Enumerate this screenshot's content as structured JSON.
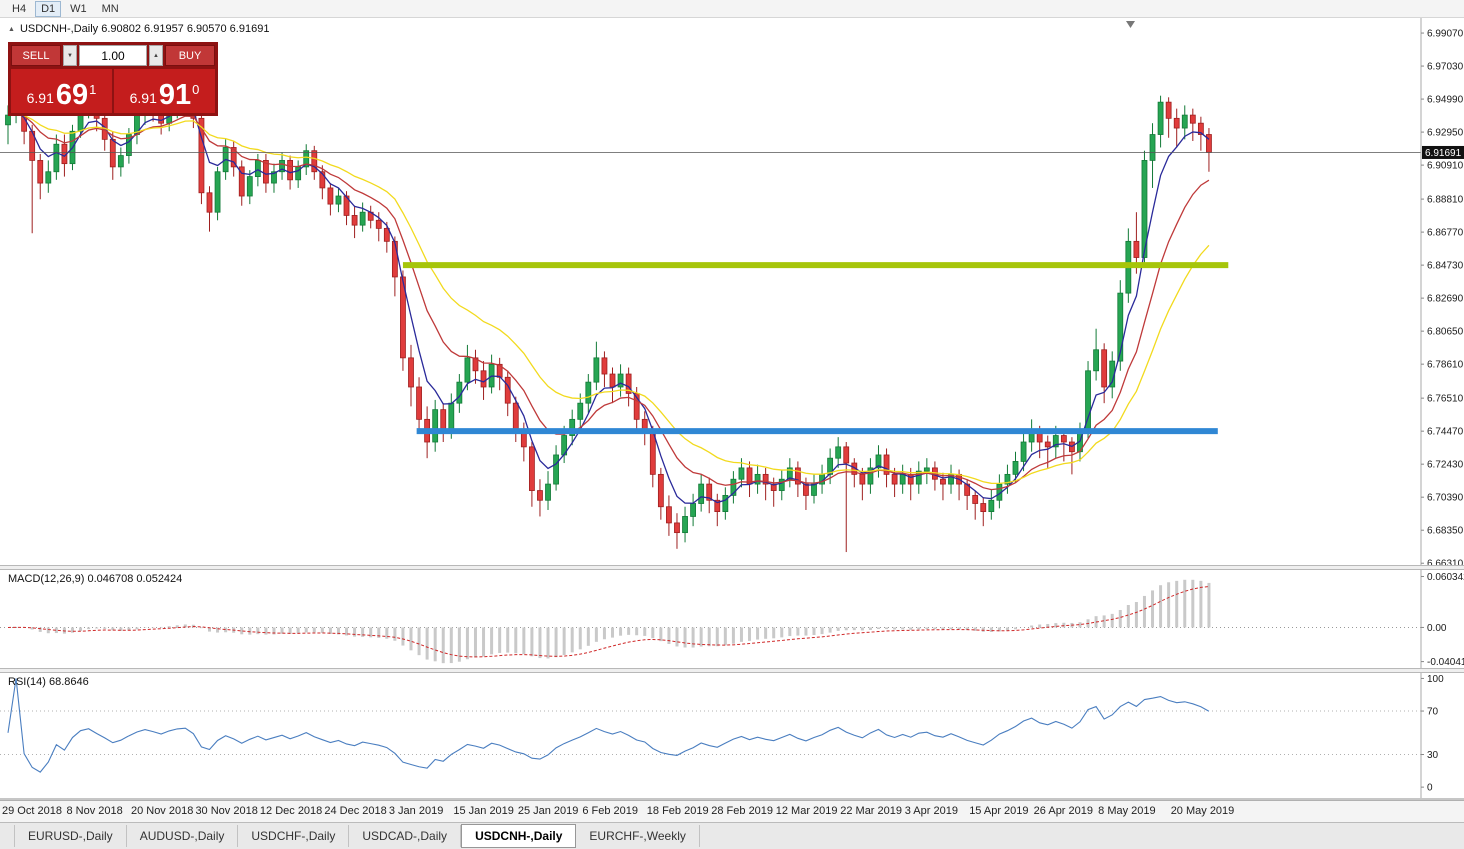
{
  "window": {
    "timeframes": [
      "H4",
      "D1",
      "W1",
      "MN"
    ],
    "active_timeframe": "D1"
  },
  "chart_header": {
    "collapse_icon": "▲",
    "title": "USDCNH-,Daily 6.90802 6.91957 6.90570 6.91691"
  },
  "trade_panel": {
    "sell_label": "SELL",
    "buy_label": "BUY",
    "volume": "1.00",
    "volume_down_icon": "▼",
    "volume_up_icon": "▲",
    "sell_price": {
      "prefix": "6.91",
      "big": "69",
      "sup": "1"
    },
    "buy_price": {
      "prefix": "6.91",
      "big": "91",
      "sup": "0"
    }
  },
  "price_scale": {
    "labels": [
      "6.99070",
      "6.97030",
      "6.94990",
      "6.92950",
      "6.90910",
      "6.88810",
      "6.86770",
      "6.84730",
      "6.82690",
      "6.80650",
      "6.78610",
      "6.76510",
      "6.74470",
      "6.72430",
      "6.70390",
      "6.68350",
      "6.66310"
    ],
    "current": "6.91691"
  },
  "colors": {
    "bull": "#26a553",
    "bull_border": "#127a37",
    "bear": "#e03c3c",
    "bear_border": "#9e1f1f",
    "ma_fast": "#2a2a9a",
    "ma_medium": "#bf3a3a",
    "ma_slow": "#f2da1e",
    "hline_green": "#a6c50a",
    "hline_blue": "#2f87d4",
    "macd_hist": "#c9c9c9",
    "macd_signal": "#cf2929",
    "rsi_line": "#4a7ec0",
    "current_price_line": "#555555",
    "badge_bg": "#111111"
  },
  "chart_data": {
    "type": "candlestick",
    "symbol": "USDCNH",
    "timeframe": "Daily",
    "y_range": [
      6.662,
      7.0
    ],
    "current_price": 6.91691,
    "candles": [
      [
        6.934,
        6.946,
        6.922,
        6.94
      ],
      [
        6.94,
        6.953,
        6.935,
        6.948
      ],
      [
        6.948,
        6.952,
        6.922,
        6.93
      ],
      [
        6.93,
        6.934,
        6.867,
        6.912
      ],
      [
        6.912,
        6.916,
        6.888,
        6.898
      ],
      [
        6.898,
        6.912,
        6.892,
        6.905
      ],
      [
        6.905,
        6.928,
        6.9,
        6.922
      ],
      [
        6.922,
        6.928,
        6.902,
        6.91
      ],
      [
        6.91,
        6.934,
        6.906,
        6.93
      ],
      [
        6.93,
        6.95,
        6.926,
        6.945
      ],
      [
        6.945,
        6.955,
        6.938,
        6.95
      ],
      [
        6.95,
        6.953,
        6.93,
        6.938
      ],
      [
        6.938,
        6.942,
        6.918,
        6.925
      ],
      [
        6.925,
        6.93,
        6.9,
        6.908
      ],
      [
        6.908,
        6.92,
        6.902,
        6.915
      ],
      [
        6.915,
        6.932,
        6.91,
        6.928
      ],
      [
        6.928,
        6.945,
        6.922,
        6.94
      ],
      [
        6.94,
        6.952,
        6.934,
        6.948
      ],
      [
        6.948,
        6.953,
        6.936,
        6.942
      ],
      [
        6.942,
        6.947,
        6.928,
        6.935
      ],
      [
        6.935,
        6.948,
        6.93,
        6.944
      ],
      [
        6.944,
        6.954,
        6.938,
        6.95
      ],
      [
        6.95,
        6.956,
        6.944,
        6.952
      ],
      [
        6.952,
        6.955,
        6.932,
        6.938
      ],
      [
        6.938,
        6.942,
        6.885,
        6.892
      ],
      [
        6.892,
        6.896,
        6.868,
        6.88
      ],
      [
        6.88,
        6.908,
        6.875,
        6.905
      ],
      [
        6.905,
        6.925,
        6.9,
        6.92
      ],
      [
        6.92,
        6.924,
        6.902,
        6.908
      ],
      [
        6.908,
        6.912,
        6.884,
        6.89
      ],
      [
        6.89,
        6.906,
        6.885,
        6.902
      ],
      [
        6.902,
        6.916,
        6.896,
        6.912
      ],
      [
        6.912,
        6.916,
        6.892,
        6.898
      ],
      [
        6.898,
        6.91,
        6.892,
        6.905
      ],
      [
        6.905,
        6.917,
        6.9,
        6.912
      ],
      [
        6.912,
        6.915,
        6.894,
        6.9
      ],
      [
        6.9,
        6.912,
        6.895,
        6.908
      ],
      [
        6.908,
        6.922,
        6.903,
        6.918
      ],
      [
        6.918,
        6.921,
        6.9,
        6.905
      ],
      [
        6.905,
        6.909,
        6.888,
        6.895
      ],
      [
        6.895,
        6.898,
        6.878,
        6.885
      ],
      [
        6.885,
        6.895,
        6.88,
        6.89
      ],
      [
        6.89,
        6.893,
        6.872,
        6.878
      ],
      [
        6.878,
        6.884,
        6.864,
        6.872
      ],
      [
        6.872,
        6.886,
        6.868,
        6.88
      ],
      [
        6.88,
        6.884,
        6.87,
        6.875
      ],
      [
        6.875,
        6.88,
        6.862,
        6.87
      ],
      [
        6.87,
        6.874,
        6.855,
        6.862
      ],
      [
        6.862,
        6.865,
        6.828,
        6.84
      ],
      [
        6.84,
        6.844,
        6.782,
        6.79
      ],
      [
        6.79,
        6.798,
        6.76,
        6.772
      ],
      [
        6.772,
        6.778,
        6.744,
        6.752
      ],
      [
        6.752,
        6.76,
        6.728,
        6.738
      ],
      [
        6.738,
        6.764,
        6.732,
        6.758
      ],
      [
        6.758,
        6.762,
        6.738,
        6.745
      ],
      [
        6.745,
        6.768,
        6.74,
        6.762
      ],
      [
        6.762,
        6.78,
        6.756,
        6.775
      ],
      [
        6.775,
        6.798,
        6.77,
        6.79
      ],
      [
        6.79,
        6.795,
        6.774,
        6.782
      ],
      [
        6.782,
        6.788,
        6.764,
        6.772
      ],
      [
        6.772,
        6.792,
        6.768,
        6.786
      ],
      [
        6.786,
        6.79,
        6.77,
        6.778
      ],
      [
        6.778,
        6.782,
        6.754,
        6.762
      ],
      [
        6.762,
        6.766,
        6.738,
        6.745
      ],
      [
        6.745,
        6.75,
        6.726,
        6.735
      ],
      [
        6.735,
        6.738,
        6.698,
        6.708
      ],
      [
        6.708,
        6.715,
        6.692,
        6.702
      ],
      [
        6.702,
        6.72,
        6.696,
        6.712
      ],
      [
        6.712,
        6.736,
        6.708,
        6.73
      ],
      [
        6.73,
        6.748,
        6.725,
        6.742
      ],
      [
        6.742,
        6.758,
        6.736,
        6.752
      ],
      [
        6.752,
        6.768,
        6.746,
        6.762
      ],
      [
        6.762,
        6.78,
        6.756,
        6.775
      ],
      [
        6.775,
        6.8,
        6.77,
        6.79
      ],
      [
        6.79,
        6.794,
        6.772,
        6.78
      ],
      [
        6.78,
        6.784,
        6.762,
        6.772
      ],
      [
        6.772,
        6.786,
        6.766,
        6.78
      ],
      [
        6.78,
        6.784,
        6.76,
        6.768
      ],
      [
        6.768,
        6.772,
        6.744,
        6.752
      ],
      [
        6.752,
        6.757,
        6.736,
        6.745
      ],
      [
        6.745,
        6.748,
        6.71,
        6.718
      ],
      [
        6.718,
        6.722,
        6.69,
        6.698
      ],
      [
        6.698,
        6.705,
        6.68,
        6.688
      ],
      [
        6.688,
        6.694,
        6.672,
        6.682
      ],
      [
        6.682,
        6.698,
        6.676,
        6.692
      ],
      [
        6.692,
        6.706,
        6.686,
        6.7
      ],
      [
        6.7,
        6.718,
        6.695,
        6.712
      ],
      [
        6.712,
        6.716,
        6.694,
        6.702
      ],
      [
        6.702,
        6.706,
        6.686,
        6.695
      ],
      [
        6.695,
        6.71,
        6.69,
        6.705
      ],
      [
        6.705,
        6.72,
        6.7,
        6.715
      ],
      [
        6.715,
        6.728,
        6.71,
        6.722
      ],
      [
        6.722,
        6.726,
        6.704,
        6.712
      ],
      [
        6.712,
        6.724,
        6.706,
        6.718
      ],
      [
        6.718,
        6.722,
        6.702,
        6.712
      ],
      [
        6.712,
        6.716,
        6.698,
        6.708
      ],
      [
        6.708,
        6.721,
        6.702,
        6.715
      ],
      [
        6.715,
        6.728,
        6.71,
        6.722
      ],
      [
        6.722,
        6.726,
        6.704,
        6.712
      ],
      [
        6.712,
        6.716,
        6.696,
        6.705
      ],
      [
        6.705,
        6.718,
        6.7,
        6.712
      ],
      [
        6.712,
        6.724,
        6.706,
        6.718
      ],
      [
        6.718,
        6.734,
        6.712,
        6.728
      ],
      [
        6.728,
        6.741,
        6.722,
        6.735
      ],
      [
        6.735,
        6.738,
        6.67,
        6.725
      ],
      [
        6.725,
        6.728,
        6.71,
        6.718
      ],
      [
        6.718,
        6.722,
        6.702,
        6.712
      ],
      [
        6.712,
        6.728,
        6.706,
        6.722
      ],
      [
        6.722,
        6.736,
        6.716,
        6.73
      ],
      [
        6.73,
        6.734,
        6.71,
        6.718
      ],
      [
        6.718,
        6.722,
        6.704,
        6.712
      ],
      [
        6.712,
        6.724,
        6.706,
        6.718
      ],
      [
        6.718,
        6.722,
        6.702,
        6.712
      ],
      [
        6.712,
        6.726,
        6.706,
        6.72
      ],
      [
        6.72,
        6.728,
        6.712,
        6.722
      ],
      [
        6.722,
        6.726,
        6.708,
        6.715
      ],
      [
        6.715,
        6.719,
        6.702,
        6.712
      ],
      [
        6.712,
        6.724,
        6.706,
        6.718
      ],
      [
        6.718,
        6.721,
        6.702,
        6.712
      ],
      [
        6.712,
        6.715,
        6.696,
        6.705
      ],
      [
        6.705,
        6.708,
        6.69,
        6.7
      ],
      [
        6.7,
        6.704,
        6.686,
        6.695
      ],
      [
        6.695,
        6.709,
        6.69,
        6.702
      ],
      [
        6.702,
        6.718,
        6.697,
        6.712
      ],
      [
        6.712,
        6.724,
        6.706,
        6.718
      ],
      [
        6.718,
        6.732,
        6.713,
        6.726
      ],
      [
        6.726,
        6.744,
        6.72,
        6.738
      ],
      [
        6.738,
        6.752,
        6.732,
        6.745
      ],
      [
        6.745,
        6.748,
        6.728,
        6.738
      ],
      [
        6.738,
        6.742,
        6.722,
        6.735
      ],
      [
        6.735,
        6.748,
        6.728,
        6.742
      ],
      [
        6.742,
        6.746,
        6.726,
        6.738
      ],
      [
        6.738,
        6.741,
        6.718,
        6.732
      ],
      [
        6.732,
        6.75,
        6.726,
        6.745
      ],
      [
        6.745,
        6.788,
        6.74,
        6.782
      ],
      [
        6.782,
        6.808,
        6.776,
        6.795
      ],
      [
        6.795,
        6.799,
        6.762,
        6.772
      ],
      [
        6.772,
        6.794,
        6.765,
        6.788
      ],
      [
        6.788,
        6.838,
        6.782,
        6.83
      ],
      [
        6.83,
        6.87,
        6.824,
        6.862
      ],
      [
        6.862,
        6.88,
        6.842,
        6.852
      ],
      [
        6.852,
        6.918,
        6.846,
        6.912
      ],
      [
        6.912,
        6.935,
        6.895,
        6.928
      ],
      [
        6.928,
        6.952,
        6.92,
        6.948
      ],
      [
        6.948,
        6.951,
        6.926,
        6.938
      ],
      [
        6.938,
        6.944,
        6.92,
        6.932
      ],
      [
        6.932,
        6.946,
        6.925,
        6.94
      ],
      [
        6.94,
        6.944,
        6.924,
        6.935
      ],
      [
        6.935,
        6.939,
        6.918,
        6.928
      ],
      [
        6.928,
        6.932,
        6.905,
        6.917
      ]
    ],
    "moving_averages": [
      {
        "name": "fast",
        "period": 5,
        "color": "#2a2a9a"
      },
      {
        "name": "medium",
        "period": 12,
        "color": "#bf3a3a"
      },
      {
        "name": "slow",
        "period": 22,
        "color": "#f2da1e"
      }
    ],
    "horizontal_lines": [
      {
        "value": 6.8473,
        "color": "#a6c50a",
        "from_index": 49,
        "to_index": 151.4
      },
      {
        "value": 6.7447,
        "color": "#2f87d4",
        "from_index": 50.7,
        "to_index": 150.1
      }
    ]
  },
  "macd_panel": {
    "label": "MACD(12,26,9) 0.046708 0.052424",
    "fast": 12,
    "slow": 26,
    "signal": 9,
    "range": [
      -0.048,
      0.068
    ],
    "scale_labels": [
      "0.060342",
      "0.00",
      "-0.040415"
    ],
    "scale_values": [
      0.060342,
      0,
      -0.040415
    ]
  },
  "rsi_panel": {
    "label": "RSI(14) 68.8646",
    "period": 14,
    "range": [
      -10,
      105
    ],
    "levels": [
      70,
      30
    ],
    "scale_labels": [
      "100",
      "70",
      "30",
      "0"
    ],
    "scale_values": [
      100,
      70,
      30,
      0
    ]
  },
  "date_axis": {
    "ticks": [
      {
        "index": 0,
        "label": "29 Oct 2018"
      },
      {
        "index": 8,
        "label": "8 Nov 2018"
      },
      {
        "index": 16,
        "label": "20 Nov 2018"
      },
      {
        "index": 24,
        "label": "30 Nov 2018"
      },
      {
        "index": 32,
        "label": "12 Dec 2018"
      },
      {
        "index": 40,
        "label": "24 Dec 2018"
      },
      {
        "index": 48,
        "label": "3 Jan 2019"
      },
      {
        "index": 56,
        "label": "15 Jan 2019"
      },
      {
        "index": 64,
        "label": "25 Jan 2019"
      },
      {
        "index": 72,
        "label": "6 Feb 2019"
      },
      {
        "index": 80,
        "label": "18 Feb 2019"
      },
      {
        "index": 88,
        "label": "28 Feb 2019"
      },
      {
        "index": 96,
        "label": "12 Mar 2019"
      },
      {
        "index": 104,
        "label": "22 Mar 2019"
      },
      {
        "index": 112,
        "label": "3 Apr 2019"
      },
      {
        "index": 120,
        "label": "15 Apr 2019"
      },
      {
        "index": 128,
        "label": "26 Apr 2019"
      },
      {
        "index": 136,
        "label": "8 May 2019"
      },
      {
        "index": 145,
        "label": "20 May 2019"
      }
    ]
  },
  "tabs": [
    {
      "label": "EURUSD-,Daily",
      "active": false
    },
    {
      "label": "AUDUSD-,Daily",
      "active": false
    },
    {
      "label": "USDCHF-,Daily",
      "active": false
    },
    {
      "label": "USDCAD-,Daily",
      "active": false
    },
    {
      "label": "USDCNH-,Daily",
      "active": true
    },
    {
      "label": "EURCHF-,Weekly",
      "active": false
    }
  ]
}
